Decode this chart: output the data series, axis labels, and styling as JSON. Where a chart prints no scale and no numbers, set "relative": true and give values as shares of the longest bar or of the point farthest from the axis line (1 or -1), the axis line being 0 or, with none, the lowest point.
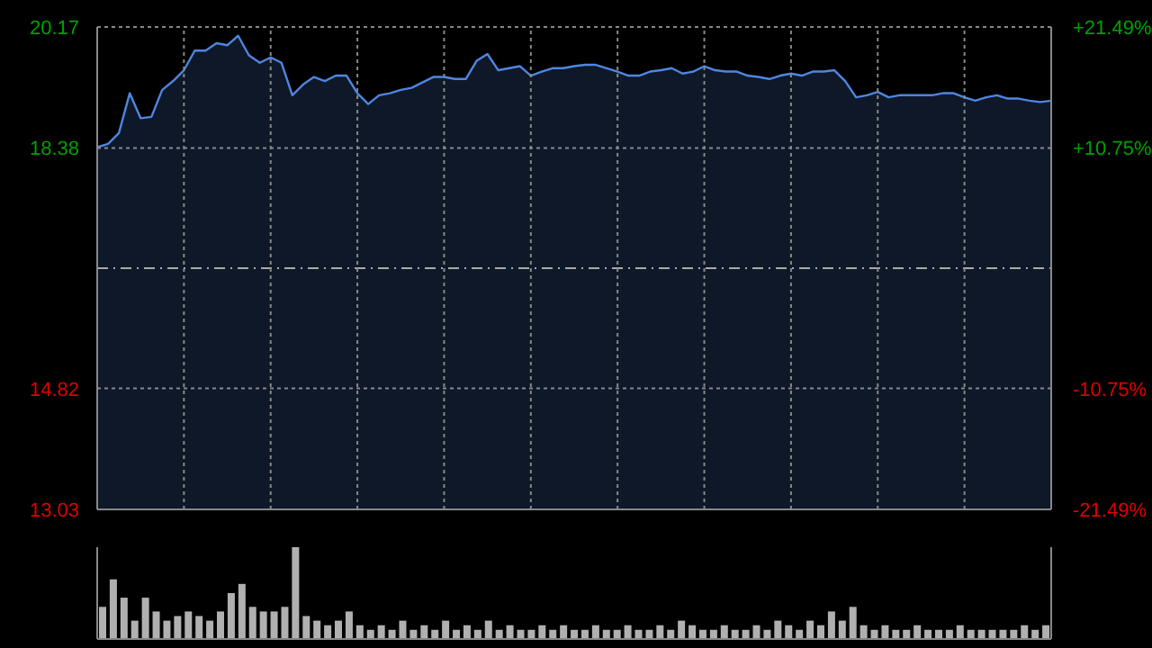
{
  "chart_data": [
    {
      "type": "area",
      "categories": [
        null,
        null,
        null,
        null,
        null,
        null,
        null,
        null,
        null,
        null,
        null,
        null,
        null,
        null,
        null,
        null,
        null,
        null,
        null,
        null,
        null,
        null,
        null,
        null,
        null,
        null,
        null,
        null,
        null,
        null,
        null,
        null,
        null,
        null,
        null,
        null,
        null,
        null,
        null,
        null,
        null,
        null,
        null,
        null,
        null,
        null,
        null,
        null,
        null,
        null,
        null,
        null,
        null,
        null,
        null,
        null,
        null,
        null,
        null,
        null,
        null,
        null,
        null,
        null,
        null,
        null,
        null,
        null,
        null,
        null,
        null,
        null,
        null,
        null,
        null,
        null,
        null,
        null,
        null,
        null,
        null,
        null,
        null,
        null,
        null,
        null,
        null,
        null,
        null
      ],
      "series": [
        {
          "color": "#4f86e0",
          "values": [
            18.39,
            18.44,
            18.6,
            19.19,
            18.82,
            18.84,
            19.24,
            19.37,
            19.53,
            19.82,
            19.82,
            19.93,
            19.9,
            20.04,
            19.75,
            19.64,
            19.72,
            19.64,
            19.16,
            19.32,
            19.43,
            19.37,
            19.45,
            19.45,
            19.19,
            19.03,
            19.16,
            19.19,
            19.24,
            19.27,
            19.35,
            19.43,
            19.43,
            19.4,
            19.4,
            19.67,
            19.77,
            19.53,
            19.56,
            19.59,
            19.45,
            19.51,
            19.56,
            19.56,
            19.59,
            19.61,
            19.61,
            19.56,
            19.51,
            19.45,
            19.45,
            19.51,
            19.53,
            19.56,
            19.48,
            19.51,
            19.59,
            19.53,
            19.51,
            19.51,
            19.45,
            19.43,
            19.4,
            19.45,
            19.48,
            19.45,
            19.51,
            19.51,
            19.53,
            19.37,
            19.13,
            19.16,
            19.21,
            19.13,
            19.16,
            19.16,
            19.16,
            19.16,
            19.19,
            19.19,
            19.13,
            19.08,
            19.13,
            19.16,
            19.11,
            19.11,
            19.08,
            19.06,
            19.08
          ]
        }
      ],
      "ylim": [
        13.03,
        20.17
      ],
      "yticks": [
        13.03,
        14.82,
        18.38,
        20.17
      ],
      "y2lim": [
        -21.49,
        21.49
      ],
      "y2ticks": [
        {
          "value": -21.49,
          "label": "-21.49%"
        },
        {
          "value": -10.75,
          "label": "-10.75%"
        },
        {
          "value": 10.75,
          "label": "+10.75%"
        },
        {
          "value": 21.49,
          "label": "+21.49%"
        }
      ],
      "ref_lines": [
        {
          "axis": "y",
          "value": 16.6,
          "label": null,
          "color": "#aaaaaa",
          "line_style": "dashed"
        }
      ],
      "grid": true,
      "legend": false,
      "marker": "none",
      "line_style": "solid",
      "tick_labels": "y"
    },
    {
      "type": "bar",
      "relative": true,
      "tick_labels": false,
      "color": "#b0b0b0",
      "categories": [
        null,
        null,
        null,
        null,
        null,
        null,
        null,
        null,
        null,
        null,
        null,
        null,
        null,
        null,
        null,
        null,
        null,
        null,
        null,
        null,
        null,
        null,
        null,
        null,
        null,
        null,
        null,
        null,
        null,
        null,
        null,
        null,
        null,
        null,
        null,
        null,
        null,
        null,
        null,
        null,
        null,
        null,
        null,
        null,
        null,
        null,
        null,
        null,
        null,
        null,
        null,
        null,
        null,
        null,
        null,
        null,
        null,
        null,
        null,
        null,
        null,
        null,
        null,
        null,
        null,
        null,
        null,
        null,
        null,
        null,
        null,
        null,
        null,
        null,
        null,
        null,
        null,
        null,
        null,
        null,
        null,
        null,
        null,
        null,
        null,
        null,
        null,
        null,
        null
      ],
      "values": [
        0.35,
        0.65,
        0.45,
        0.2,
        0.45,
        0.3,
        0.2,
        0.25,
        0.3,
        0.25,
        0.2,
        0.3,
        0.5,
        0.6,
        0.35,
        0.3,
        0.3,
        0.35,
        1.0,
        0.25,
        0.2,
        0.15,
        0.2,
        0.3,
        0.15,
        0.1,
        0.15,
        0.1,
        0.2,
        0.1,
        0.15,
        0.1,
        0.2,
        0.1,
        0.15,
        0.1,
        0.2,
        0.1,
        0.15,
        0.1,
        0.1,
        0.15,
        0.1,
        0.15,
        0.1,
        0.1,
        0.15,
        0.1,
        0.1,
        0.15,
        0.1,
        0.1,
        0.15,
        0.1,
        0.2,
        0.15,
        0.1,
        0.1,
        0.15,
        0.1,
        0.1,
        0.15,
        0.1,
        0.2,
        0.15,
        0.1,
        0.2,
        0.15,
        0.3,
        0.2,
        0.35,
        0.15,
        0.1,
        0.15,
        0.1,
        0.1,
        0.15,
        0.1,
        0.1,
        0.1,
        0.15,
        0.1,
        0.1,
        0.1,
        0.1,
        0.1,
        0.15,
        0.1,
        0.15
      ]
    }
  ]
}
